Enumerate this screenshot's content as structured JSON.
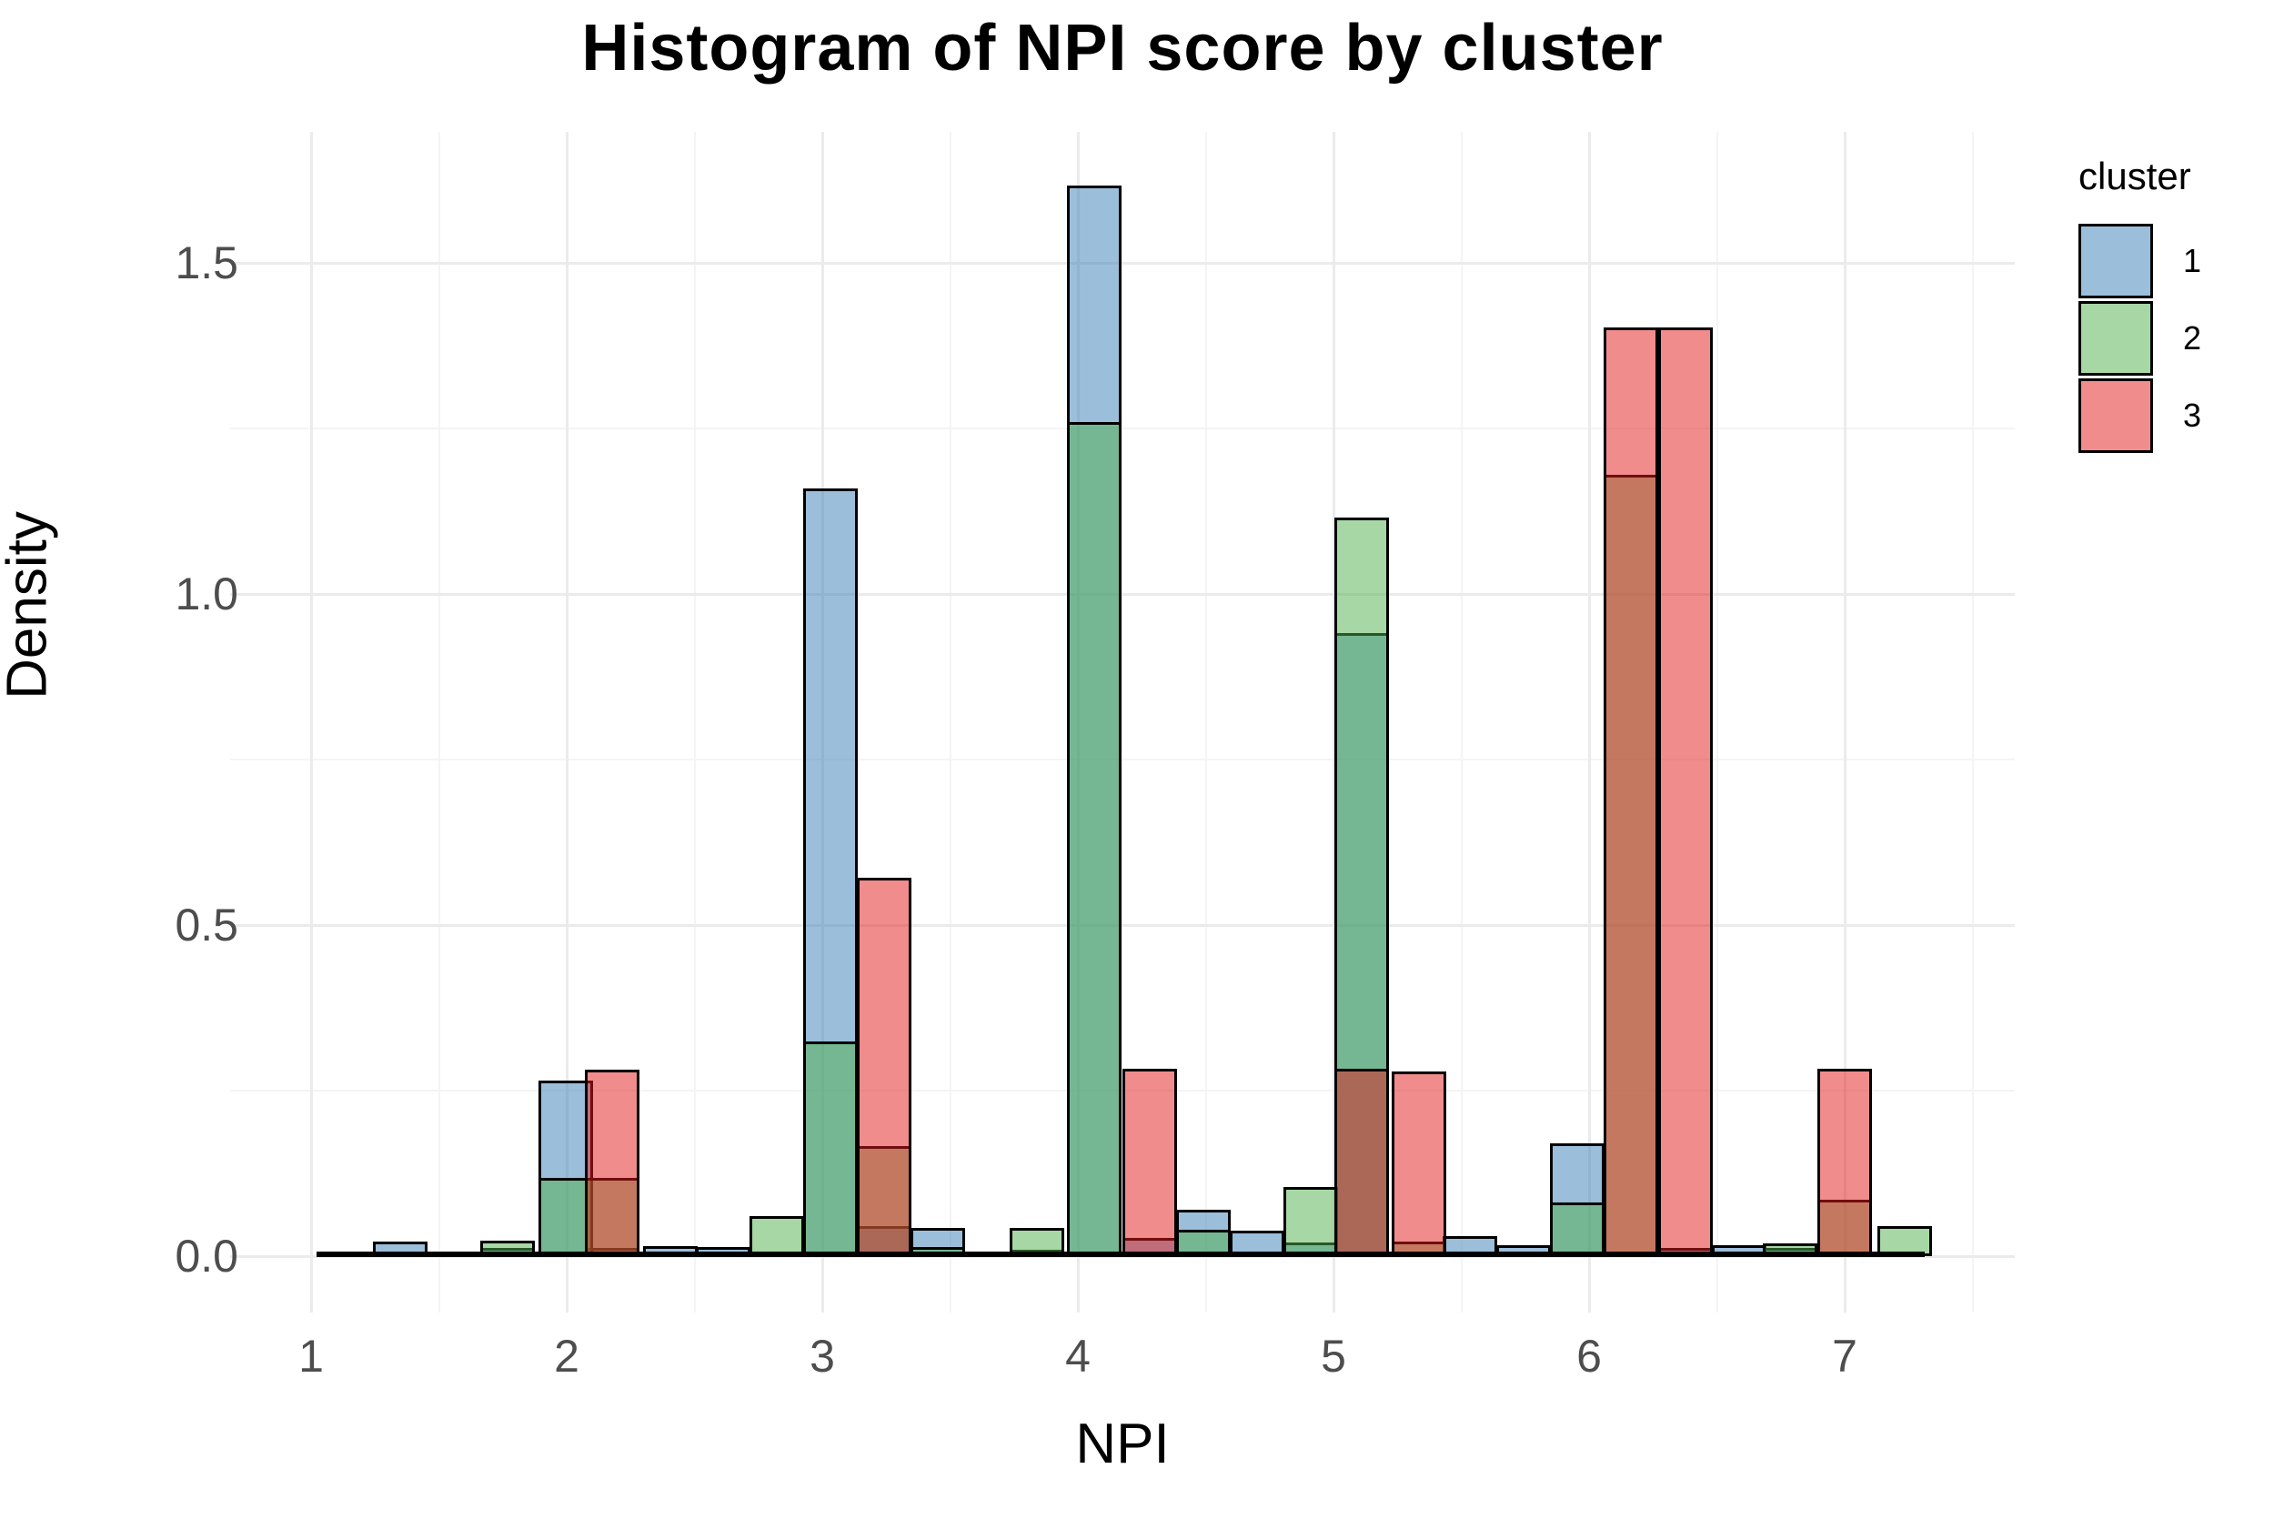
{
  "title": "Histogram of NPI score by cluster",
  "axes": {
    "x_label": "NPI",
    "y_label": "Density",
    "x_ticks": [
      "1",
      "2",
      "3",
      "4",
      "5",
      "6",
      "7"
    ],
    "x_tick_values": [
      1,
      2,
      3,
      4,
      5,
      6,
      7
    ],
    "y_ticks": [
      "0.0",
      "0.5",
      "1.0",
      "1.5"
    ],
    "y_tick_values": [
      0.0,
      0.5,
      1.0,
      1.5
    ]
  },
  "legend": {
    "title": "cluster",
    "entries": [
      {
        "label": "1",
        "color": "#377EB8"
      },
      {
        "label": "2",
        "color": "#4DAF4A"
      },
      {
        "label": "3",
        "color": "#E41A1C"
      }
    ]
  },
  "style": {
    "fill_alpha": 0.5,
    "bar_outline": "#000000",
    "grid_major": "#EBEBEB",
    "grid_minor": "#F4F4F4",
    "axis_text_color": "#4D4D4D",
    "background": "#FFFFFF"
  },
  "chart_data": {
    "type": "bar",
    "subtype": "overlaid-histogram",
    "title": "Histogram of NPI score by cluster",
    "xlabel": "NPI",
    "ylabel": "Density",
    "xlim": [
      0.68,
      7.67
    ],
    "ylim": [
      0,
      1.7
    ],
    "binwidth": 0.212,
    "grid": true,
    "legend_position": "right",
    "series": [
      {
        "name": "1",
        "color": "#377EB8",
        "bars": [
          {
            "x0": 1.242,
            "density": 0.022
          },
          {
            "x0": 1.662,
            "density": 0.012
          },
          {
            "x0": 1.89,
            "density": 0.265
          },
          {
            "x0": 2.071,
            "density": 0.013
          },
          {
            "x0": 2.299,
            "density": 0.015
          },
          {
            "x0": 2.505,
            "density": 0.014
          },
          {
            "x0": 2.925,
            "density": 1.16
          },
          {
            "x0": 3.135,
            "density": 0.045
          },
          {
            "x0": 3.345,
            "density": 0.043
          },
          {
            "x0": 3.555,
            "density": 0.007
          },
          {
            "x0": 3.733,
            "density": 0.01
          },
          {
            "x0": 3.957,
            "density": 1.617
          },
          {
            "x0": 4.174,
            "density": 0.028
          },
          {
            "x0": 4.384,
            "density": 0.07
          },
          {
            "x0": 4.594,
            "density": 0.038
          },
          {
            "x0": 4.804,
            "density": 0.02
          },
          {
            "x0": 5.004,
            "density": 0.941
          },
          {
            "x0": 5.427,
            "density": 0.03
          },
          {
            "x0": 5.637,
            "density": 0.016
          },
          {
            "x0": 5.847,
            "density": 0.17
          },
          {
            "x0": 6.27,
            "density": 0.012
          },
          {
            "x0": 6.481,
            "density": 0.016
          },
          {
            "x0": 6.68,
            "density": 0.012
          }
        ]
      },
      {
        "name": "2",
        "color": "#4DAF4A",
        "bars": [
          {
            "x0": 1.662,
            "density": 0.023
          },
          {
            "x0": 1.89,
            "density": 0.118
          },
          {
            "x0": 2.071,
            "density": 0.118
          },
          {
            "x0": 2.715,
            "density": 0.06
          },
          {
            "x0": 2.925,
            "density": 0.324
          },
          {
            "x0": 3.135,
            "density": 0.166
          },
          {
            "x0": 3.345,
            "density": 0.014
          },
          {
            "x0": 3.733,
            "density": 0.043
          },
          {
            "x0": 3.957,
            "density": 1.26
          },
          {
            "x0": 4.384,
            "density": 0.04
          },
          {
            "x0": 4.804,
            "density": 0.104
          },
          {
            "x0": 5.004,
            "density": 1.115
          },
          {
            "x0": 5.228,
            "density": 0.022
          },
          {
            "x0": 5.847,
            "density": 0.081
          },
          {
            "x0": 6.057,
            "density": 1.18
          },
          {
            "x0": 6.68,
            "density": 0.019
          },
          {
            "x0": 6.893,
            "density": 0.085
          },
          {
            "x0": 7.128,
            "density": 0.045
          }
        ]
      },
      {
        "name": "3",
        "color": "#E41A1C",
        "bars": [
          {
            "x0": 2.071,
            "density": 0.281
          },
          {
            "x0": 3.135,
            "density": 0.571
          },
          {
            "x0": 4.174,
            "density": 0.283
          },
          {
            "x0": 5.004,
            "density": 0.283
          },
          {
            "x0": 5.228,
            "density": 0.279
          },
          {
            "x0": 6.057,
            "density": 1.402
          },
          {
            "x0": 6.27,
            "density": 1.402
          },
          {
            "x0": 6.893,
            "density": 0.283
          }
        ]
      }
    ]
  }
}
